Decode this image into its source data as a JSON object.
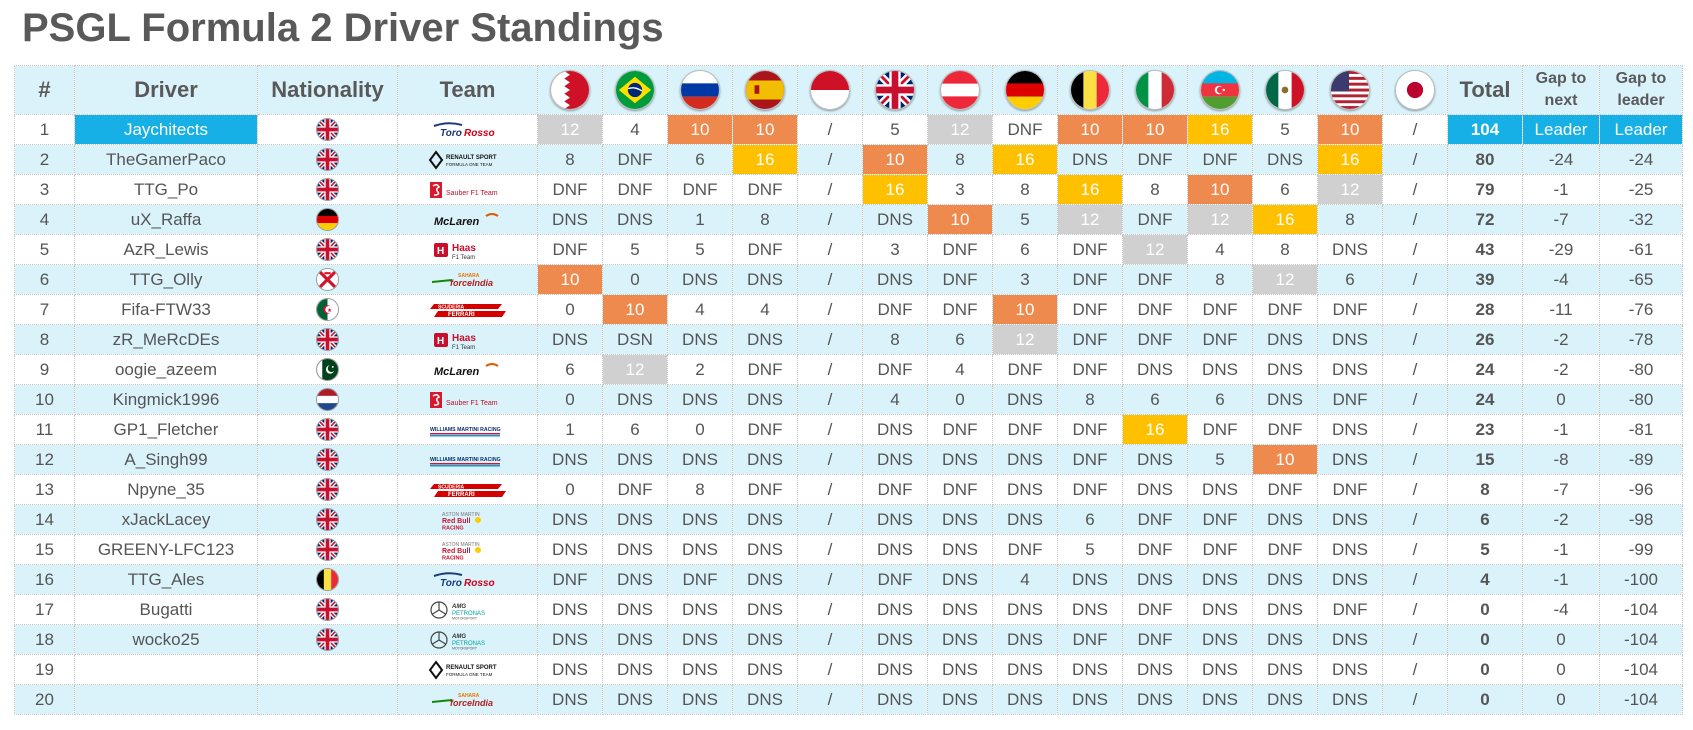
{
  "title": "PSGL Formula 2 Driver Standings",
  "headers": {
    "rank": "#",
    "driver": "Driver",
    "nationality": "Nationality",
    "team": "Team",
    "total": "Total",
    "gap_next": "Gap to next",
    "gap_leader": "Gap to leader"
  },
  "races": [
    "bahrain",
    "brazil",
    "russia",
    "spain",
    "monaco",
    "britain",
    "austria",
    "germany",
    "belgium",
    "italy",
    "azerbaijan",
    "mexico",
    "usa",
    "japan"
  ],
  "colors": {
    "gold": "#ffc000",
    "silver": "#d0d0d0",
    "bronze": "#ee8a4e",
    "leader": "#16b0e6",
    "stripe": "#daf3fb"
  },
  "rows": [
    {
      "pos": "1",
      "driver": "Jaychitects",
      "nat": "gb",
      "team": "toro-rosso",
      "results": [
        "12",
        "4",
        "10",
        "10",
        "/",
        "5",
        "12",
        "DNF",
        "10",
        "10",
        "16",
        "5",
        "10",
        "/"
      ],
      "hl": [
        "s",
        "",
        "b",
        "b",
        "",
        "",
        "s",
        "",
        "b",
        "b",
        "g",
        "",
        "b",
        ""
      ],
      "total": "104",
      "gap_next": "Leader",
      "gap_leader": "Leader"
    },
    {
      "pos": "2",
      "driver": "TheGamerPaco",
      "nat": "gb",
      "team": "renault",
      "results": [
        "8",
        "DNF",
        "6",
        "16",
        "/",
        "10",
        "8",
        "16",
        "DNS",
        "DNF",
        "DNF",
        "DNS",
        "16",
        "/"
      ],
      "hl": [
        "",
        "",
        "",
        "g",
        "",
        "b",
        "",
        "g",
        "",
        "",
        "",
        "",
        "g",
        ""
      ],
      "total": "80",
      "gap_next": "-24",
      "gap_leader": "-24"
    },
    {
      "pos": "3",
      "driver": "TTG_Po",
      "nat": "gb",
      "team": "sauber",
      "results": [
        "DNF",
        "DNF",
        "DNF",
        "DNF",
        "/",
        "16",
        "3",
        "8",
        "16",
        "8",
        "10",
        "6",
        "12",
        "/"
      ],
      "hl": [
        "",
        "",
        "",
        "",
        "",
        "g",
        "",
        "",
        "g",
        "",
        "b",
        "",
        "s",
        ""
      ],
      "total": "79",
      "gap_next": "-1",
      "gap_leader": "-25"
    },
    {
      "pos": "4",
      "driver": "uX_Raffa",
      "nat": "de",
      "team": "mclaren",
      "results": [
        "DNS",
        "DNS",
        "1",
        "8",
        "/",
        "DNS",
        "10",
        "5",
        "12",
        "DNF",
        "12",
        "16",
        "8",
        "/"
      ],
      "hl": [
        "",
        "",
        "",
        "",
        "",
        "",
        "b",
        "",
        "s",
        "",
        "s",
        "g",
        "",
        ""
      ],
      "total": "72",
      "gap_next": "-7",
      "gap_leader": "-32"
    },
    {
      "pos": "5",
      "driver": "AzR_Lewis",
      "nat": "gb",
      "team": "haas",
      "results": [
        "DNF",
        "5",
        "5",
        "DNF",
        "/",
        "3",
        "DNF",
        "6",
        "DNF",
        "12",
        "4",
        "8",
        "DNS",
        "/"
      ],
      "hl": [
        "",
        "",
        "",
        "",
        "",
        "",
        "",
        "",
        "",
        "s",
        "",
        "",
        "",
        ""
      ],
      "total": "43",
      "gap_next": "-29",
      "gap_leader": "-61"
    },
    {
      "pos": "6",
      "driver": "TTG_Olly",
      "nat": "je",
      "team": "force-india",
      "results": [
        "10",
        "0",
        "DNS",
        "DNS",
        "/",
        "DNS",
        "DNF",
        "3",
        "DNF",
        "DNF",
        "8",
        "12",
        "6",
        "/"
      ],
      "hl": [
        "b",
        "",
        "",
        "",
        "",
        "",
        "",
        "",
        "",
        "",
        "",
        "s",
        "",
        ""
      ],
      "total": "39",
      "gap_next": "-4",
      "gap_leader": "-65"
    },
    {
      "pos": "7",
      "driver": "Fifa-FTW33",
      "nat": "dz",
      "team": "ferrari",
      "results": [
        "0",
        "10",
        "4",
        "4",
        "/",
        "DNF",
        "DNF",
        "10",
        "DNF",
        "DNF",
        "DNF",
        "DNF",
        "DNF",
        "/"
      ],
      "hl": [
        "",
        "b",
        "",
        "",
        "",
        "",
        "",
        "b",
        "",
        "",
        "",
        "",
        "",
        ""
      ],
      "total": "28",
      "gap_next": "-11",
      "gap_leader": "-76"
    },
    {
      "pos": "8",
      "driver": "zR_MeRcDEs",
      "nat": "gb",
      "team": "haas",
      "results": [
        "DNS",
        "DSN",
        "DNS",
        "DNS",
        "/",
        "8",
        "6",
        "12",
        "DNF",
        "DNF",
        "DNF",
        "DNS",
        "DNS",
        "/"
      ],
      "hl": [
        "",
        "",
        "",
        "",
        "",
        "",
        "",
        "s",
        "",
        "",
        "",
        "",
        "",
        ""
      ],
      "total": "26",
      "gap_next": "-2",
      "gap_leader": "-78"
    },
    {
      "pos": "9",
      "driver": "oogie_azeem",
      "nat": "pk",
      "team": "mclaren",
      "results": [
        "6",
        "12",
        "2",
        "DNF",
        "/",
        "DNF",
        "4",
        "DNF",
        "DNF",
        "DNS",
        "DNS",
        "DNS",
        "DNS",
        "/"
      ],
      "hl": [
        "",
        "s",
        "",
        "",
        "",
        "",
        "",
        "",
        "",
        "",
        "",
        "",
        "",
        ""
      ],
      "total": "24",
      "gap_next": "-2",
      "gap_leader": "-80"
    },
    {
      "pos": "10",
      "driver": "Kingmick1996",
      "nat": "nl",
      "team": "sauber",
      "results": [
        "0",
        "DNS",
        "DNS",
        "DNS",
        "/",
        "4",
        "0",
        "DNS",
        "8",
        "6",
        "6",
        "DNS",
        "DNF",
        "/"
      ],
      "hl": [
        "",
        "",
        "",
        "",
        "",
        "",
        "",
        "",
        "",
        "",
        "",
        "",
        "",
        ""
      ],
      "total": "24",
      "gap_next": "0",
      "gap_leader": "-80"
    },
    {
      "pos": "11",
      "driver": "GP1_Fletcher",
      "nat": "gb",
      "team": "williams",
      "results": [
        "1",
        "6",
        "0",
        "DNF",
        "/",
        "DNS",
        "DNF",
        "DNF",
        "DNF",
        "16",
        "DNF",
        "DNF",
        "DNS",
        "/"
      ],
      "hl": [
        "",
        "",
        "",
        "",
        "",
        "",
        "",
        "",
        "",
        "g",
        "",
        "",
        "",
        ""
      ],
      "total": "23",
      "gap_next": "-1",
      "gap_leader": "-81"
    },
    {
      "pos": "12",
      "driver": "A_Singh99",
      "nat": "gb",
      "team": "williams",
      "results": [
        "DNS",
        "DNS",
        "DNS",
        "DNS",
        "/",
        "DNS",
        "DNS",
        "DNS",
        "DNF",
        "DNS",
        "5",
        "10",
        "DNS",
        "/"
      ],
      "hl": [
        "",
        "",
        "",
        "",
        "",
        "",
        "",
        "",
        "",
        "",
        "",
        "b",
        "",
        ""
      ],
      "total": "15",
      "gap_next": "-8",
      "gap_leader": "-89"
    },
    {
      "pos": "13",
      "driver": "Npyne_35",
      "nat": "gb",
      "team": "ferrari",
      "results": [
        "0",
        "DNF",
        "8",
        "DNF",
        "/",
        "DNF",
        "DNF",
        "DNS",
        "DNF",
        "DNS",
        "DNS",
        "DNF",
        "DNF",
        "/"
      ],
      "hl": [
        "",
        "",
        "",
        "",
        "",
        "",
        "",
        "",
        "",
        "",
        "",
        "",
        "",
        ""
      ],
      "total": "8",
      "gap_next": "-7",
      "gap_leader": "-96"
    },
    {
      "pos": "14",
      "driver": "xJackLacey",
      "nat": "gb",
      "team": "red-bull",
      "results": [
        "DNS",
        "DNS",
        "DNS",
        "DNS",
        "/",
        "DNS",
        "DNS",
        "DNS",
        "6",
        "DNF",
        "DNF",
        "DNS",
        "DNS",
        "/"
      ],
      "hl": [
        "",
        "",
        "",
        "",
        "",
        "",
        "",
        "",
        "",
        "",
        "",
        "",
        "",
        ""
      ],
      "total": "6",
      "gap_next": "-2",
      "gap_leader": "-98"
    },
    {
      "pos": "15",
      "driver": "GREENY-LFC123",
      "nat": "gb",
      "team": "red-bull",
      "results": [
        "DNS",
        "DNS",
        "DNS",
        "DNS",
        "/",
        "DNS",
        "DNS",
        "DNF",
        "5",
        "DNF",
        "DNF",
        "DNF",
        "DNS",
        "/"
      ],
      "hl": [
        "",
        "",
        "",
        "",
        "",
        "",
        "",
        "",
        "",
        "",
        "",
        "",
        "",
        ""
      ],
      "total": "5",
      "gap_next": "-1",
      "gap_leader": "-99"
    },
    {
      "pos": "16",
      "driver": "TTG_Ales",
      "nat": "be",
      "team": "toro-rosso",
      "results": [
        "DNF",
        "DNS",
        "DNF",
        "DNS",
        "/",
        "DNF",
        "DNS",
        "4",
        "DNS",
        "DNS",
        "DNS",
        "DNS",
        "DNS",
        "/"
      ],
      "hl": [
        "",
        "",
        "",
        "",
        "",
        "",
        "",
        "",
        "",
        "",
        "",
        "",
        "",
        ""
      ],
      "total": "4",
      "gap_next": "-1",
      "gap_leader": "-100"
    },
    {
      "pos": "17",
      "driver": "Bugatti",
      "nat": "gb",
      "team": "mercedes",
      "results": [
        "DNS",
        "DNS",
        "DNS",
        "DNS",
        "/",
        "DNS",
        "DNS",
        "DNS",
        "DNS",
        "DNF",
        "DNS",
        "DNS",
        "DNF",
        "/"
      ],
      "hl": [
        "",
        "",
        "",
        "",
        "",
        "",
        "",
        "",
        "",
        "",
        "",
        "",
        "",
        ""
      ],
      "total": "0",
      "gap_next": "-4",
      "gap_leader": "-104"
    },
    {
      "pos": "18",
      "driver": "wocko25",
      "nat": "gb",
      "team": "mercedes",
      "results": [
        "DNS",
        "DNS",
        "DNS",
        "DNS",
        "/",
        "DNS",
        "DNS",
        "DNS",
        "DNF",
        "DNF",
        "DNS",
        "DNS",
        "DNS",
        "/"
      ],
      "hl": [
        "",
        "",
        "",
        "",
        "",
        "",
        "",
        "",
        "",
        "",
        "",
        "",
        "",
        ""
      ],
      "total": "0",
      "gap_next": "0",
      "gap_leader": "-104"
    },
    {
      "pos": "19",
      "driver": "",
      "nat": "",
      "team": "renault",
      "results": [
        "DNS",
        "DNS",
        "DNS",
        "DNS",
        "/",
        "DNS",
        "DNS",
        "DNS",
        "DNS",
        "DNS",
        "DNS",
        "DNS",
        "DNS",
        "/"
      ],
      "hl": [
        "",
        "",
        "",
        "",
        "",
        "",
        "",
        "",
        "",
        "",
        "",
        "",
        "",
        ""
      ],
      "total": "0",
      "gap_next": "0",
      "gap_leader": "-104"
    },
    {
      "pos": "20",
      "driver": "",
      "nat": "",
      "team": "force-india",
      "results": [
        "DNS",
        "DNS",
        "DNS",
        "DNS",
        "/",
        "DNS",
        "DNS",
        "DNS",
        "DNS",
        "DNS",
        "DNS",
        "DNS",
        "DNS",
        "/"
      ],
      "hl": [
        "",
        "",
        "",
        "",
        "",
        "",
        "",
        "",
        "",
        "",
        "",
        "",
        "",
        ""
      ],
      "total": "0",
      "gap_next": "0",
      "gap_leader": "-104"
    }
  ]
}
